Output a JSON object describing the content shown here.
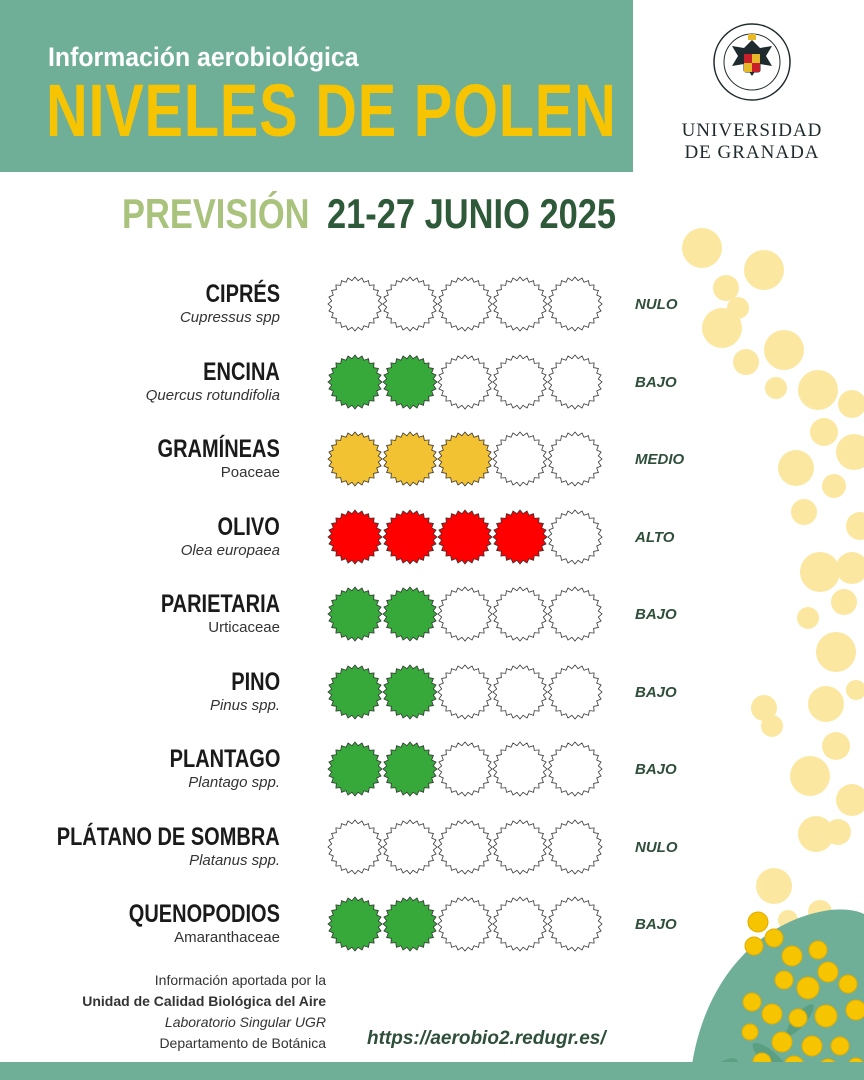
{
  "header": {
    "subtitle": "Información aerobiológica",
    "title": "NIVELES DE POLEN"
  },
  "logo": {
    "name_line1": "UNIVERSIDAD",
    "name_line2": "DE GRANADA",
    "seal_text": "UNIVERSITAS GRANATENSIS 1531"
  },
  "forecast": {
    "label": "PREVISIÓN",
    "date": "21-27 JUNIO 2025"
  },
  "colors": {
    "header_bg": "#6fae97",
    "title_yellow": "#f6c400",
    "bajo": "#36a93a",
    "medio": "#f3c232",
    "alto": "#ff0000",
    "empty": "#ffffff"
  },
  "plants": [
    {
      "name": "CIPRÉS",
      "scientific": "Cupressus spp",
      "italic": true,
      "filled": 0,
      "fill_color": "#ffffff",
      "level": "NULO"
    },
    {
      "name": "ENCINA",
      "scientific": "Quercus rotundifolia",
      "italic": true,
      "filled": 2,
      "fill_color": "#36a93a",
      "level": "BAJO"
    },
    {
      "name": "GRAMÍNEAS",
      "scientific": "Poaceae",
      "italic": false,
      "filled": 3,
      "fill_color": "#f3c232",
      "level": "MEDIO"
    },
    {
      "name": "OLIVO",
      "scientific": "Olea europaea",
      "italic": true,
      "filled": 4,
      "fill_color": "#ff0000",
      "level": "ALTO"
    },
    {
      "name": "PARIETARIA",
      "scientific": "Urticaceae",
      "italic": false,
      "filled": 2,
      "fill_color": "#36a93a",
      "level": "BAJO"
    },
    {
      "name": "PINO",
      "scientific": "Pinus spp.",
      "italic": true,
      "filled": 2,
      "fill_color": "#36a93a",
      "level": "BAJO"
    },
    {
      "name": "PLANTAGO",
      "scientific": "Plantago spp.",
      "italic": true,
      "filled": 2,
      "fill_color": "#36a93a",
      "level": "BAJO"
    },
    {
      "name": "PLÁTANO DE SOMBRA",
      "scientific": "Platanus spp.",
      "italic": true,
      "filled": 0,
      "fill_color": "#ffffff",
      "level": "NULO"
    },
    {
      "name": "QUENOPODIOS",
      "scientific": "Amaranthaceae",
      "italic": false,
      "filled": 2,
      "fill_color": "#36a93a",
      "level": "BAJO"
    }
  ],
  "footer": {
    "line1": "Información aportada por la",
    "line2": "Unidad de Calidad Biológica del Aire",
    "line3": "Laboratorio Singular UGR",
    "line4": "Departamento de Botánica",
    "url": "https://aerobio2.redugr.es/"
  }
}
